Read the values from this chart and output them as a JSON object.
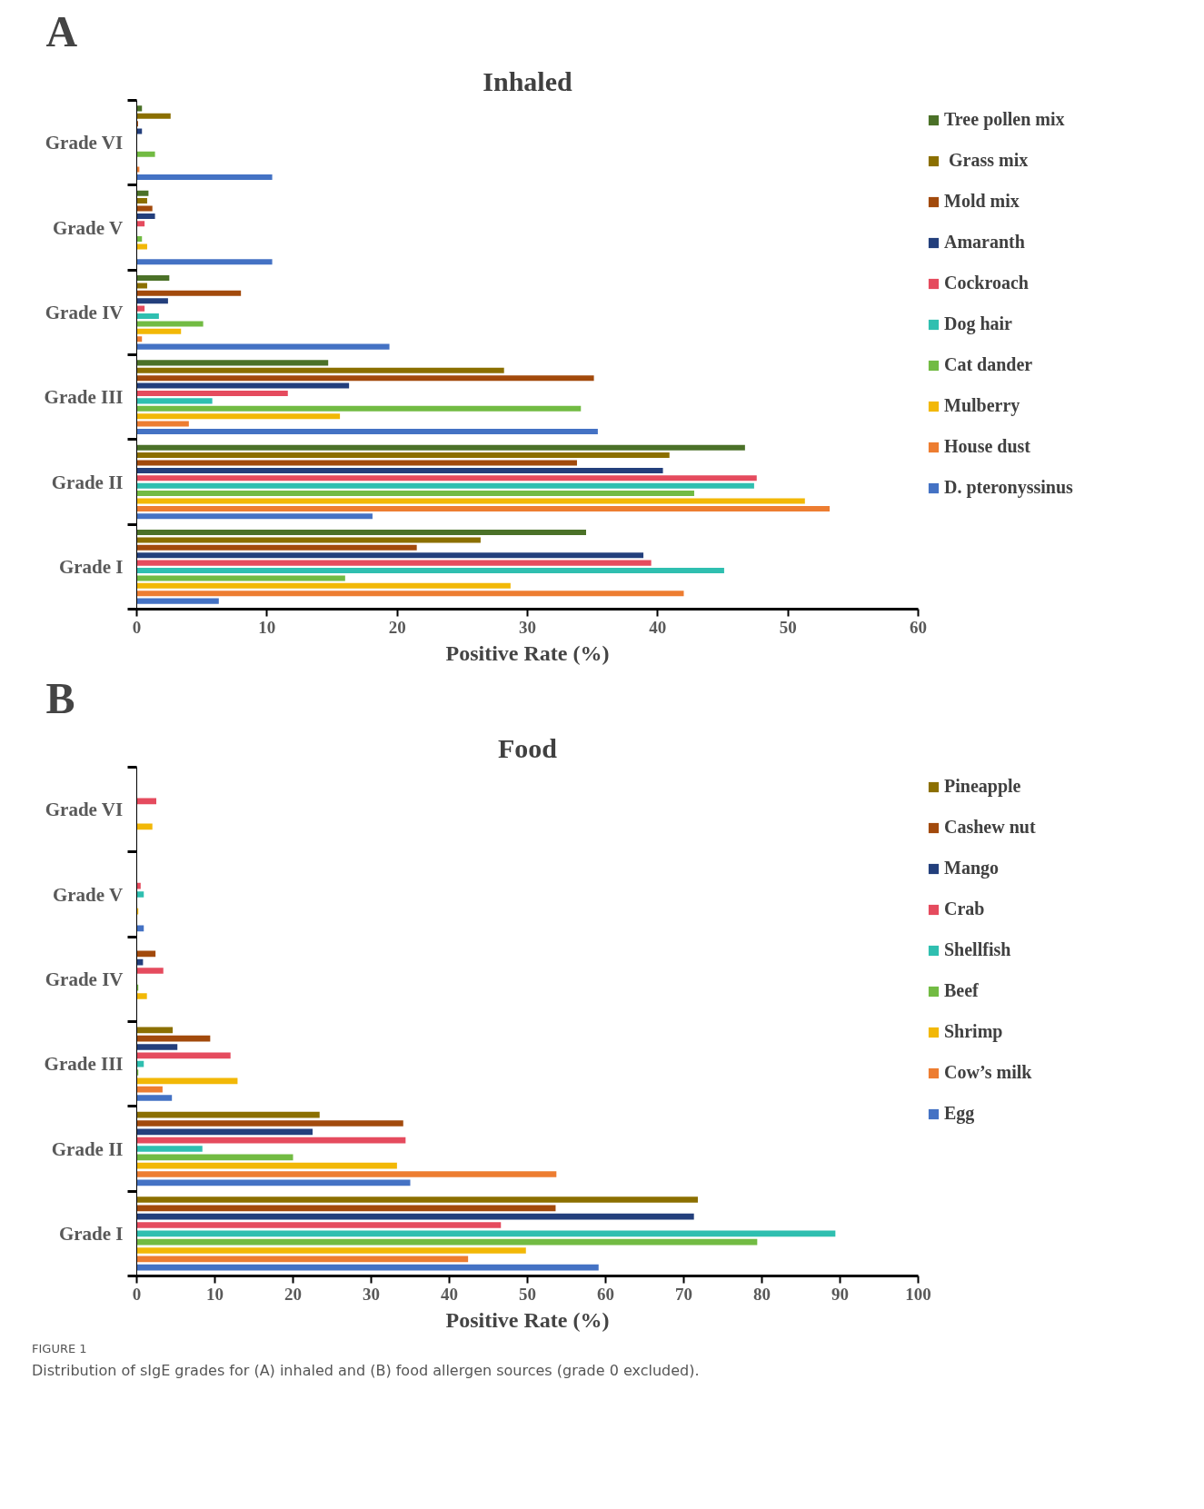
{
  "chart_data": [
    {
      "type": "bar",
      "orientation": "horizontal",
      "title": "Inhaled",
      "xlabel": "Positive Rate (%)",
      "annotations": [
        "A"
      ],
      "categories": [
        "Grade VI",
        "Grade V",
        "Grade IV",
        "Grade III",
        "Grade II",
        "Grade I"
      ],
      "xlim": [
        0,
        60
      ],
      "xticks": [
        0,
        10,
        20,
        30,
        40,
        50,
        60
      ],
      "grid": false,
      "legend": "right",
      "series": [
        {
          "name": "Tree pollen mix",
          "color": "#4b7128",
          "values": [
            0.4,
            0.9,
            2.5,
            14.7,
            46.7,
            34.5
          ]
        },
        {
          "name": " Grass mix",
          "color": "#8b6f00",
          "values": [
            2.6,
            0.8,
            0.8,
            28.2,
            40.9,
            26.4
          ]
        },
        {
          "name": "Mold mix",
          "color": "#a24a0c",
          "values": [
            0.1,
            1.2,
            8.0,
            35.1,
            33.8,
            21.5
          ]
        },
        {
          "name": "Amaranth",
          "color": "#233f7c",
          "values": [
            0.4,
            1.4,
            2.4,
            16.3,
            40.4,
            38.9
          ]
        },
        {
          "name": "Cockroach",
          "color": "#e54b5e",
          "values": [
            0,
            0.6,
            0.6,
            11.6,
            47.6,
            39.5
          ]
        },
        {
          "name": "Dog hair",
          "color": "#2fbfb0",
          "values": [
            0,
            0,
            1.7,
            5.8,
            47.4,
            45.1
          ]
        },
        {
          "name": "Cat dander",
          "color": "#72bb43",
          "values": [
            1.4,
            0.4,
            5.1,
            34.1,
            42.8,
            16.0
          ]
        },
        {
          "name": "Mulberry",
          "color": "#f2b807",
          "values": [
            0,
            0.8,
            3.4,
            15.6,
            51.3,
            28.7
          ]
        },
        {
          "name": "House dust",
          "color": "#ed7d31",
          "values": [
            0.2,
            0,
            0.4,
            4.0,
            53.2,
            42.0
          ]
        },
        {
          "name": "D. pteronyssinus",
          "color": "#4472c4",
          "values": [
            10.4,
            10.4,
            19.4,
            35.4,
            18.1,
            6.3
          ]
        }
      ]
    },
    {
      "type": "bar",
      "orientation": "horizontal",
      "title": "Food",
      "xlabel": "Positive Rate (%)",
      "annotations": [
        "B",
        "FIGURE 1",
        "Distribution of sIgE grades for (A) inhaled and (B) food allergen sources (grade 0 excluded)."
      ],
      "categories": [
        "Grade VI",
        "Grade V",
        "Grade IV",
        "Grade III",
        "Grade II",
        "Grade I"
      ],
      "xlim": [
        0,
        100
      ],
      "xticks": [
        0,
        10,
        20,
        30,
        40,
        50,
        60,
        70,
        80,
        90,
        100
      ],
      "grid": false,
      "legend": "right",
      "series": [
        {
          "name": "Pineapple",
          "color": "#8b6f00",
          "values": [
            0,
            0,
            0,
            4.6,
            23.4,
            71.8
          ]
        },
        {
          "name": "Cashew nut",
          "color": "#a24a0c",
          "values": [
            0,
            0,
            2.4,
            9.4,
            34.1,
            53.6
          ]
        },
        {
          "name": "Mango",
          "color": "#233f7c",
          "values": [
            0,
            0,
            0.8,
            5.2,
            22.5,
            71.3
          ]
        },
        {
          "name": "Crab",
          "color": "#e54b5e",
          "values": [
            2.5,
            0.5,
            3.4,
            12.0,
            34.4,
            46.6
          ]
        },
        {
          "name": "Shellfish",
          "color": "#2fbfb0",
          "values": [
            0,
            0.9,
            0,
            0.9,
            8.4,
            89.4
          ]
        },
        {
          "name": "Beef",
          "color": "#72bb43",
          "values": [
            0,
            0,
            0.2,
            0.2,
            20.0,
            79.4
          ]
        },
        {
          "name": "Shrimp",
          "color": "#f2b807",
          "values": [
            2.0,
            0.2,
            1.3,
            12.9,
            33.3,
            49.8
          ]
        },
        {
          "name": "Cow’s milk",
          "color": "#ed7d31",
          "values": [
            0,
            0,
            0,
            3.3,
            53.7,
            42.4
          ]
        },
        {
          "name": "Egg",
          "color": "#4472c4",
          "values": [
            0,
            0.9,
            0,
            4.5,
            35.0,
            59.1
          ]
        }
      ]
    }
  ]
}
